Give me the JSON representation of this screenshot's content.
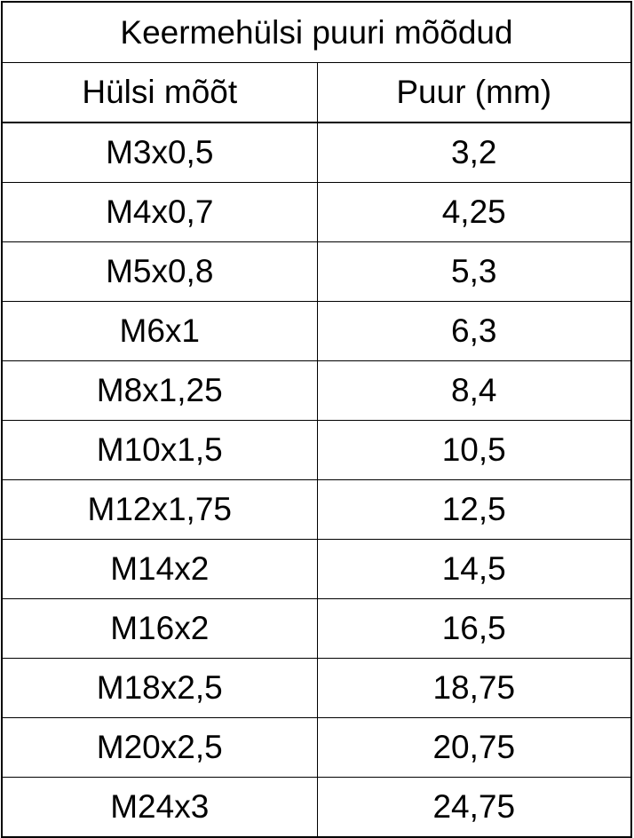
{
  "title": "Keermehülsi puuri mõõdud",
  "headers": [
    "Hülsi mõõt",
    "Puur (mm)"
  ],
  "rows": [
    [
      "M3x0,5",
      "3,2"
    ],
    [
      "M4x0,7",
      "4,25"
    ],
    [
      "M5x0,8",
      "5,3"
    ],
    [
      "M6x1",
      "6,3"
    ],
    [
      "M8x1,25",
      "8,4"
    ],
    [
      "M10x1,5",
      "10,5"
    ],
    [
      "M12x1,75",
      "12,5"
    ],
    [
      "M14x2",
      "14,5"
    ],
    [
      "M16x2",
      "16,5"
    ],
    [
      "M18x2,5",
      "18,75"
    ],
    [
      "M20x2,5",
      "20,75"
    ],
    [
      "M24x3",
      "24,75"
    ]
  ]
}
